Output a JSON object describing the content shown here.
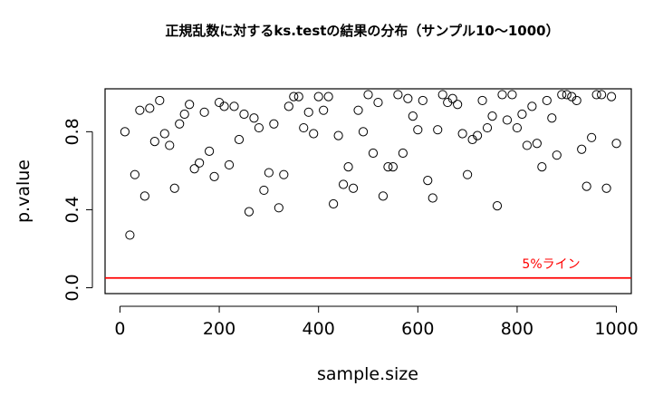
{
  "chart_data": {
    "type": "scatter",
    "title": "正規乱数に対するks.testの結果の分布（サンプル10〜1000）",
    "xlabel": "sample.size",
    "ylabel": "p.value",
    "xlim": [
      -30,
      1030
    ],
    "ylim": [
      -0.03,
      1.02
    ],
    "xticks": [
      "0",
      "200",
      "400",
      "600",
      "800",
      "1000"
    ],
    "yticks": [
      "0.0",
      "0.4",
      "0.8"
    ],
    "grid": false,
    "point_style": "open-circle",
    "reference_line": {
      "y": 0.05,
      "label": "5%ライン",
      "color": "#ff0000"
    },
    "x": [
      10,
      20,
      30,
      40,
      50,
      60,
      70,
      80,
      90,
      100,
      110,
      120,
      130,
      140,
      150,
      160,
      170,
      180,
      190,
      200,
      210,
      220,
      230,
      240,
      250,
      260,
      270,
      280,
      290,
      300,
      310,
      320,
      330,
      340,
      350,
      360,
      370,
      380,
      390,
      400,
      410,
      420,
      430,
      440,
      450,
      460,
      470,
      480,
      490,
      500,
      510,
      520,
      530,
      540,
      550,
      560,
      570,
      580,
      590,
      600,
      610,
      620,
      630,
      640,
      650,
      660,
      670,
      680,
      690,
      700,
      710,
      720,
      730,
      740,
      750,
      760,
      770,
      780,
      790,
      800,
      810,
      820,
      830,
      840,
      850,
      860,
      870,
      880,
      890,
      900,
      910,
      920,
      930,
      940,
      950,
      960,
      970,
      980,
      990,
      1000
    ],
    "y": [
      0.8,
      0.27,
      0.58,
      0.91,
      0.47,
      0.92,
      0.75,
      0.96,
      0.79,
      0.73,
      0.51,
      0.84,
      0.89,
      0.94,
      0.61,
      0.64,
      0.9,
      0.7,
      0.57,
      0.95,
      0.93,
      0.63,
      0.93,
      0.76,
      0.89,
      0.39,
      0.87,
      0.82,
      0.5,
      0.59,
      0.84,
      0.41,
      0.58,
      0.93,
      0.98,
      0.98,
      0.82,
      0.9,
      0.79,
      0.98,
      0.91,
      0.98,
      0.43,
      0.78,
      0.53,
      0.62,
      0.51,
      0.91,
      0.8,
      0.99,
      0.69,
      0.95,
      0.47,
      0.62,
      0.62,
      0.99,
      0.69,
      0.97,
      0.88,
      0.81,
      0.96,
      0.55,
      0.46,
      0.81,
      0.99,
      0.95,
      0.97,
      0.94,
      0.79,
      0.58,
      0.76,
      0.78,
      0.96,
      0.82,
      0.88,
      0.42,
      0.99,
      0.86,
      0.99,
      0.82,
      0.89,
      0.73,
      0.93,
      0.74,
      0.62,
      0.96,
      0.87,
      0.68,
      0.99,
      0.99,
      0.98,
      0.96,
      0.71,
      0.52,
      0.77,
      0.99,
      0.99,
      0.51,
      0.98,
      0.74
    ]
  }
}
